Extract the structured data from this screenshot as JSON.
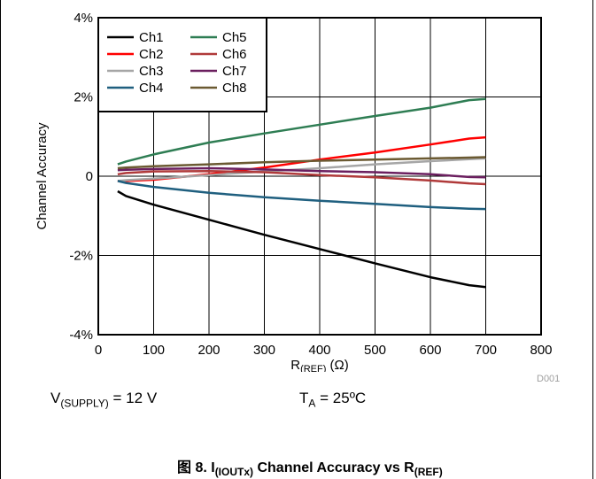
{
  "chart_data": {
    "type": "line",
    "xlabel_main": "R",
    "xlabel_sub": "(REF)",
    "xlabel_unit": " (Ω)",
    "ylabel": "Channel Accuracy",
    "xlim": [
      0,
      800
    ],
    "ylim": [
      -4,
      4
    ],
    "x_ticks": [
      0,
      100,
      200,
      300,
      400,
      500,
      600,
      700,
      800
    ],
    "y_ticks": [
      {
        "value": -4,
        "label": "-4%"
      },
      {
        "value": -2,
        "label": "-2%"
      },
      {
        "value": 0,
        "label": "0"
      },
      {
        "value": 2,
        "label": "2%"
      },
      {
        "value": 4,
        "label": "4%"
      }
    ],
    "grid": true,
    "legend_position": "top-left",
    "x": [
      35,
      50,
      100,
      200,
      300,
      400,
      500,
      600,
      670,
      700
    ],
    "series": [
      {
        "name": "Ch1",
        "color": "#000000",
        "values": [
          -0.38,
          -0.5,
          -0.72,
          -1.1,
          -1.48,
          -1.84,
          -2.2,
          -2.55,
          -2.75,
          -2.8
        ]
      },
      {
        "name": "Ch2",
        "color": "#ff0000",
        "values": [
          -0.12,
          -0.12,
          -0.09,
          0.05,
          0.22,
          0.42,
          0.6,
          0.8,
          0.95,
          0.98
        ]
      },
      {
        "name": "Ch3",
        "color": "#a6a6a6",
        "values": [
          -0.12,
          -0.1,
          -0.06,
          0.03,
          0.12,
          0.2,
          0.3,
          0.38,
          0.43,
          0.45
        ]
      },
      {
        "name": "Ch4",
        "color": "#1f5f7f",
        "values": [
          -0.12,
          -0.17,
          -0.27,
          -0.42,
          -0.53,
          -0.62,
          -0.7,
          -0.78,
          -0.82,
          -0.83
        ]
      },
      {
        "name": "Ch5",
        "color": "#2e7d53",
        "values": [
          0.3,
          0.37,
          0.55,
          0.85,
          1.08,
          1.3,
          1.52,
          1.73,
          1.92,
          1.95
        ]
      },
      {
        "name": "Ch6",
        "color": "#b03a3a",
        "values": [
          0.05,
          0.08,
          0.12,
          0.13,
          0.1,
          0.03,
          -0.03,
          -0.11,
          -0.18,
          -0.2
        ]
      },
      {
        "name": "Ch7",
        "color": "#6b1f5f",
        "values": [
          0.15,
          0.16,
          0.18,
          0.2,
          0.17,
          0.13,
          0.1,
          0.05,
          -0.02,
          -0.03
        ]
      },
      {
        "name": "Ch8",
        "color": "#6b5a32",
        "values": [
          0.2,
          0.22,
          0.25,
          0.3,
          0.35,
          0.39,
          0.42,
          0.45,
          0.47,
          0.48
        ]
      }
    ]
  },
  "notes": {
    "supply_main": "V",
    "supply_sub": "(SUPPLY)",
    "supply_value": " = 12 V",
    "temp_main": "T",
    "temp_sub": "A",
    "temp_value": " = 25ºC",
    "figure_code": "D001"
  },
  "caption": {
    "prefix": "图 8. I",
    "sub1": "(IOUTx)",
    "middle": " Channel Accuracy vs R",
    "sub2": "(REF)"
  }
}
